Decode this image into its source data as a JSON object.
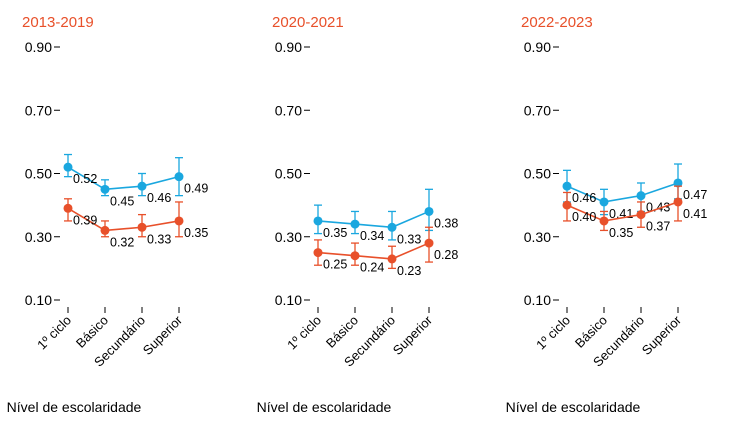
{
  "chart_data": [
    {
      "type": "line",
      "title": "2013-2019",
      "xlabel": "Nível de escolaridade",
      "categories": [
        "1º ciclo",
        "Básico",
        "Secundário",
        "Superior"
      ],
      "yticks": [
        "0.10",
        "0.30",
        "0.50",
        "0.70",
        "0.90"
      ],
      "ylim": [
        0.05,
        0.95
      ],
      "error_bars": true,
      "series": [
        {
          "color": "#1aa7df",
          "values": [
            0.52,
            0.45,
            0.46,
            0.49
          ],
          "labels": [
            "0.52",
            "0.45",
            "0.46",
            "0.49"
          ],
          "ci_low": [
            0.49,
            0.43,
            0.43,
            0.43
          ],
          "ci_high": [
            0.56,
            0.48,
            0.5,
            0.55
          ]
        },
        {
          "color": "#e8502a",
          "values": [
            0.39,
            0.32,
            0.33,
            0.35
          ],
          "labels": [
            "0.39",
            "0.32",
            "0.33",
            "0.35"
          ],
          "ci_low": [
            0.35,
            0.3,
            0.3,
            0.3
          ],
          "ci_high": [
            0.42,
            0.35,
            0.37,
            0.41
          ]
        }
      ]
    },
    {
      "type": "line",
      "title": "2020-2021",
      "xlabel": "Nível de escolaridade",
      "categories": [
        "1º ciclo",
        "Básico",
        "Secundário",
        "Superior"
      ],
      "yticks": [
        "0.10",
        "0.30",
        "0.50",
        "0.70",
        "0.90"
      ],
      "ylim": [
        0.05,
        0.95
      ],
      "error_bars": true,
      "series": [
        {
          "color": "#1aa7df",
          "values": [
            0.35,
            0.34,
            0.33,
            0.38
          ],
          "labels": [
            "0.35",
            "0.34",
            "0.33",
            "0.38"
          ],
          "ci_low": [
            0.31,
            0.31,
            0.29,
            0.32
          ],
          "ci_high": [
            0.4,
            0.38,
            0.38,
            0.45
          ]
        },
        {
          "color": "#e8502a",
          "values": [
            0.25,
            0.24,
            0.23,
            0.28
          ],
          "labels": [
            "0.25",
            "0.24",
            "0.23",
            "0.28"
          ],
          "ci_low": [
            0.21,
            0.21,
            0.2,
            0.22
          ],
          "ci_high": [
            0.29,
            0.28,
            0.27,
            0.33
          ]
        }
      ]
    },
    {
      "type": "line",
      "title": "2022-2023",
      "xlabel": "Nível de escolaridade",
      "categories": [
        "1º ciclo",
        "Básico",
        "Secundário",
        "Superior"
      ],
      "yticks": [
        "0.10",
        "0.30",
        "0.50",
        "0.70",
        "0.90"
      ],
      "ylim": [
        0.05,
        0.95
      ],
      "error_bars": true,
      "series": [
        {
          "color": "#1aa7df",
          "values": [
            0.46,
            0.41,
            0.43,
            0.47
          ],
          "labels": [
            "0.46",
            "0.41",
            "0.43",
            "0.47"
          ],
          "ci_low": [
            0.41,
            0.37,
            0.38,
            0.42
          ],
          "ci_high": [
            0.51,
            0.45,
            0.47,
            0.53
          ]
        },
        {
          "color": "#e8502a",
          "values": [
            0.4,
            0.35,
            0.37,
            0.41
          ],
          "labels": [
            "0.40",
            "0.35",
            "0.37",
            "0.41"
          ],
          "ci_low": [
            0.35,
            0.32,
            0.33,
            0.35
          ],
          "ci_high": [
            0.44,
            0.38,
            0.41,
            0.46
          ]
        }
      ]
    }
  ]
}
